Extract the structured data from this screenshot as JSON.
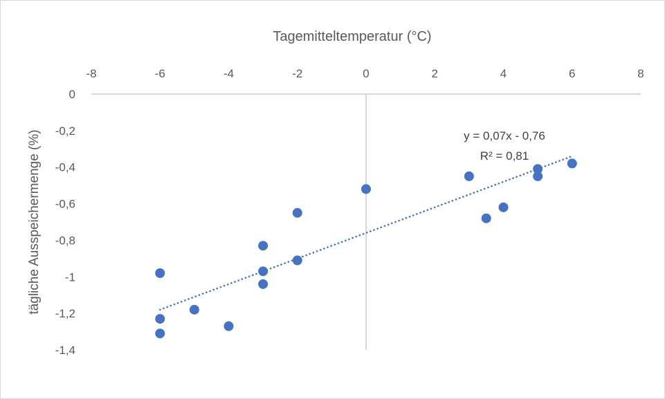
{
  "chart_data": {
    "type": "scatter",
    "title": "Tagemitteltemperatur (°C)",
    "xlabel": "",
    "ylabel": "tägliche Ausspeichermenge (%)",
    "xlim": [
      -8,
      8
    ],
    "ylim": [
      -1.4,
      0
    ],
    "x_ticks": [
      -8,
      -6,
      -4,
      -2,
      0,
      2,
      4,
      6,
      8
    ],
    "x_tick_labels": [
      "-8",
      "-6",
      "-4",
      "-2",
      "0",
      "2",
      "4",
      "6",
      "8"
    ],
    "y_ticks": [
      0,
      -0.2,
      -0.4,
      -0.6,
      -0.8,
      -1,
      -1.2,
      -1.4
    ],
    "y_tick_labels": [
      "0",
      "-0,2",
      "-0,4",
      "-0,6",
      "-0,8",
      "-1",
      "-1,2",
      "-1,4"
    ],
    "x_axis_position": "top",
    "grid": false,
    "legend": "none",
    "marker_color": "#4472c4",
    "series": [
      {
        "points": [
          {
            "x": -6,
            "y": -0.98
          },
          {
            "x": -6,
            "y": -1.23
          },
          {
            "x": -6,
            "y": -1.31
          },
          {
            "x": -5,
            "y": -1.18
          },
          {
            "x": -4,
            "y": -1.27
          },
          {
            "x": -3,
            "y": -0.83
          },
          {
            "x": -3,
            "y": -0.97
          },
          {
            "x": -3,
            "y": -1.04
          },
          {
            "x": -2,
            "y": -0.65
          },
          {
            "x": -2,
            "y": -0.91
          },
          {
            "x": 0,
            "y": -0.52
          },
          {
            "x": 3,
            "y": -0.45
          },
          {
            "x": 3.5,
            "y": -0.68
          },
          {
            "x": 4,
            "y": -0.62
          },
          {
            "x": 5,
            "y": -0.41
          },
          {
            "x": 5,
            "y": -0.45
          },
          {
            "x": 6,
            "y": -0.38
          }
        ]
      }
    ],
    "trendline": {
      "type": "linear",
      "style": "dotted",
      "slope": 0.07,
      "intercept": -0.76,
      "x_range": [
        -6,
        6
      ],
      "equation_label": "y = 0,07x - 0,76",
      "r2_label": "R² = 0,81"
    }
  }
}
